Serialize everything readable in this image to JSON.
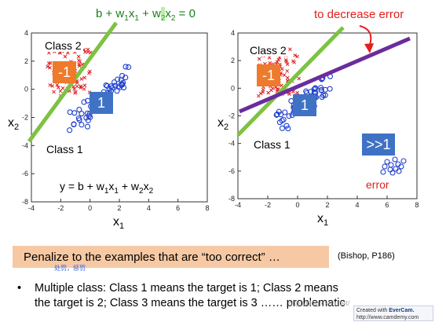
{
  "top_equation": {
    "prefix": "b + w",
    "s1": "1",
    "x": "x",
    "s2": "1",
    "plus": " + w",
    "s3": "2",
    "x2": "x",
    "s4": "2",
    "suffix": " = 0"
  },
  "top_right_label": "to decrease error",
  "left_plot": {
    "class2_label": "Class 2",
    "class1_label": "Class 1",
    "badge_neg": "-1",
    "badge_pos": "1",
    "y_ticks": [
      "4",
      "2",
      "0",
      "-2",
      "-4",
      "-6",
      "-8"
    ],
    "x_ticks": [
      "-4",
      "-2",
      "0",
      "2",
      "4",
      "6",
      "8"
    ],
    "xlabel": {
      "base": "x",
      "sub": "1"
    },
    "ylabel": {
      "base": "x",
      "sub": "2"
    },
    "equation": {
      "a": "y = b + w",
      "s1": "1",
      "b": "x",
      "s2": "1",
      "c": " + w",
      "s3": "2",
      "d": "x",
      "s4": "2"
    }
  },
  "right_plot": {
    "class2_label": "Class 2",
    "class1_label": "Class 1",
    "badge_neg": "-1",
    "badge_pos": "1",
    "badge_big": ">>1",
    "error_label": "error",
    "y_ticks": [
      "4",
      "2",
      "0",
      "-2",
      "-4",
      "-6",
      "-8"
    ],
    "x_ticks": [
      "-4",
      "-2",
      "0",
      "2",
      "4",
      "6",
      "8"
    ],
    "xlabel": {
      "base": "x",
      "sub": "1"
    },
    "ylabel": {
      "base": "x",
      "sub": "2"
    }
  },
  "colors": {
    "green_line": "#7dc242",
    "purple_line": "#6a2c9e",
    "class2": "#e02020",
    "class1": "#1f3fcf",
    "badge_orange": "#ee7a2c",
    "badge_blue": "#3f72c4",
    "penalize_bg": "#f6c9a4"
  },
  "penalize_text": "Penalize to the examples that are “too correct” …",
  "citation": "(Bishop, P186)",
  "cn_note": "处罚，惩罚",
  "bullet": {
    "line1": "Multiple class: Class 1 means the target is 1; Class 2 means",
    "line2": "the target is 2; Class 3 means the target is 3 …… problematic"
  },
  "watermark": "http://blog.csdn.net/",
  "evercam": {
    "line1a": "Created with ",
    "brand": "EverCam.",
    "line2": "http://www.camdemy.com"
  }
}
